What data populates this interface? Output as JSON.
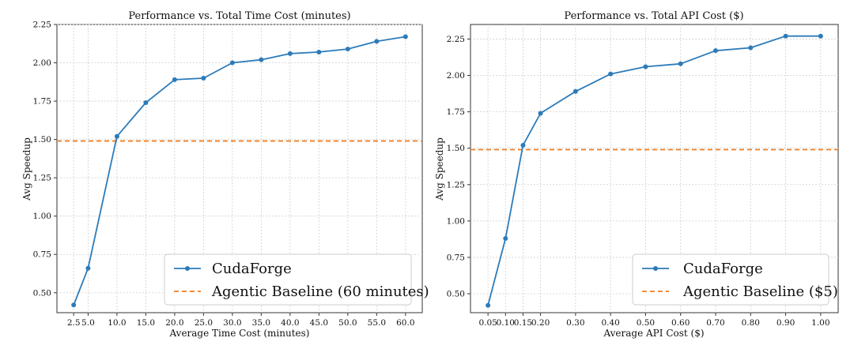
{
  "charts": [
    {
      "title": "Performance vs. Total Time Cost (minutes)",
      "xlabel": "Average Time Cost (minutes)",
      "ylabel": "Avg Speedup"
    },
    {
      "title": "Performance vs. Total API Cost ($)",
      "xlabel": "Average API Cost ($)",
      "ylabel": "Avg Speedup"
    }
  ],
  "chart_data": [
    {
      "type": "line",
      "title": "Performance vs. Total Time Cost (minutes)",
      "xlabel": "Average Time Cost (minutes)",
      "ylabel": "Avg Speedup",
      "x": [
        2.5,
        5.0,
        10.0,
        15.0,
        20.0,
        25.0,
        30.0,
        35.0,
        40.0,
        45.0,
        50.0,
        55.0,
        60.0
      ],
      "x_tick_labels": [
        "2.5",
        "5.0",
        "10.0",
        "15.0",
        "20.0",
        "25.0",
        "30.0",
        "35.0",
        "40.0",
        "45.0",
        "50.0",
        "55.0",
        "60.0"
      ],
      "y_ticks": [
        0.5,
        0.75,
        1.0,
        1.25,
        1.5,
        1.75,
        2.0,
        2.25
      ],
      "y_tick_labels": [
        "0.50",
        "0.75",
        "1.00",
        "1.25",
        "1.50",
        "1.75",
        "2.00",
        "2.25"
      ],
      "xlim": [
        -0.4,
        62.9
      ],
      "ylim": [
        0.37,
        2.25
      ],
      "grid": true,
      "legend_position": "bottom-right",
      "series": [
        {
          "name": "CudaForge",
          "style": "solid-marker",
          "color": "#2b7bba",
          "values": [
            0.42,
            0.66,
            1.52,
            1.74,
            1.89,
            1.9,
            2.0,
            2.02,
            2.06,
            2.07,
            2.09,
            2.14,
            2.17
          ]
        }
      ],
      "baseline": {
        "name": "Agentic Baseline (60 minutes)",
        "value": 1.49,
        "color": "#f07f24",
        "style": "dashed"
      }
    },
    {
      "type": "line",
      "title": "Performance vs. Total API Cost ($)",
      "xlabel": "Average API Cost ($)",
      "ylabel": "Avg Speedup",
      "x": [
        0.05,
        0.1,
        0.15,
        0.2,
        0.3,
        0.4,
        0.5,
        0.6,
        0.7,
        0.8,
        0.9,
        1.0
      ],
      "x_tick_labels": [
        "0.05",
        "0.10",
        "0.15",
        "0.20",
        "0.30",
        "0.40",
        "0.50",
        "0.60",
        "0.70",
        "0.80",
        "0.90",
        "1.00"
      ],
      "y_ticks": [
        0.5,
        0.75,
        1.0,
        1.25,
        1.5,
        1.75,
        2.0,
        2.25
      ],
      "y_tick_labels": [
        "0.50",
        "0.75",
        "1.00",
        "1.25",
        "1.50",
        "1.75",
        "2.00",
        "2.25"
      ],
      "xlim": [
        0.0,
        1.05
      ],
      "ylim": [
        0.37,
        2.35
      ],
      "grid": true,
      "legend_position": "bottom-right",
      "series": [
        {
          "name": "CudaForge",
          "style": "solid-marker",
          "color": "#2b7bba",
          "values": [
            0.42,
            0.88,
            1.52,
            1.74,
            1.89,
            2.01,
            2.06,
            2.08,
            2.17,
            2.19,
            2.27,
            2.27
          ]
        }
      ],
      "baseline": {
        "name": "Agentic Baseline ($5)",
        "value": 1.49,
        "color": "#f07f24",
        "style": "dashed"
      }
    }
  ]
}
